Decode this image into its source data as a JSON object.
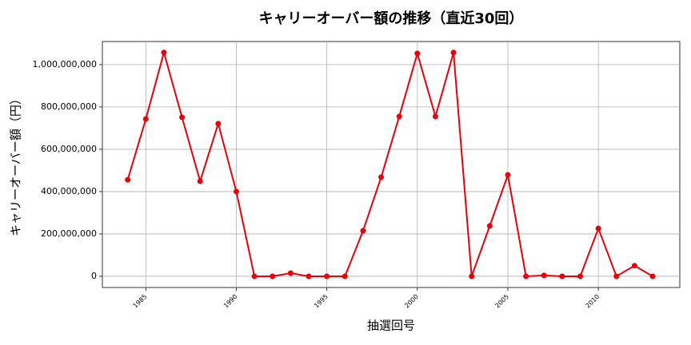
{
  "chart_data": {
    "type": "line",
    "title": "キャリーオーバー額の推移（直近30回）",
    "xlabel": "抽選回号",
    "ylabel": "キャリーオーバー額（円）",
    "x": [
      1984,
      1985,
      1986,
      1987,
      1988,
      1989,
      1990,
      1991,
      1992,
      1993,
      1994,
      1995,
      1996,
      1997,
      1998,
      1999,
      2000,
      2001,
      2002,
      2003,
      2004,
      2005,
      2006,
      2007,
      2008,
      2009,
      2010,
      2011,
      2012,
      2013
    ],
    "values": [
      456000000,
      743000000,
      1057000000,
      751000000,
      449000000,
      721000000,
      400000000,
      0,
      0,
      15000000,
      0,
      0,
      0,
      215000000,
      468000000,
      755000000,
      1053000000,
      755000000,
      1057000000,
      0,
      238000000,
      479000000,
      0,
      4000000,
      0,
      0,
      226000000,
      0,
      50000000,
      0
    ],
    "color": "#e8000b",
    "xlim": [
      1982.6,
      2014.5
    ],
    "ylim": [
      -53000000,
      1109000000
    ],
    "xticks": [
      1985,
      1990,
      1995,
      2000,
      2005,
      2010
    ],
    "yticks": [
      0,
      {
        "value": 200000000,
        "label": "200,000,000"
      },
      {
        "value": 400000000,
        "label": "400,000,000"
      },
      {
        "value": 600000000,
        "label": "600,000,000"
      },
      {
        "value": 800000000,
        "label": "800,000,000"
      },
      {
        "value": 1000000000,
        "label": "1,000,000,000"
      }
    ],
    "grid": true
  }
}
